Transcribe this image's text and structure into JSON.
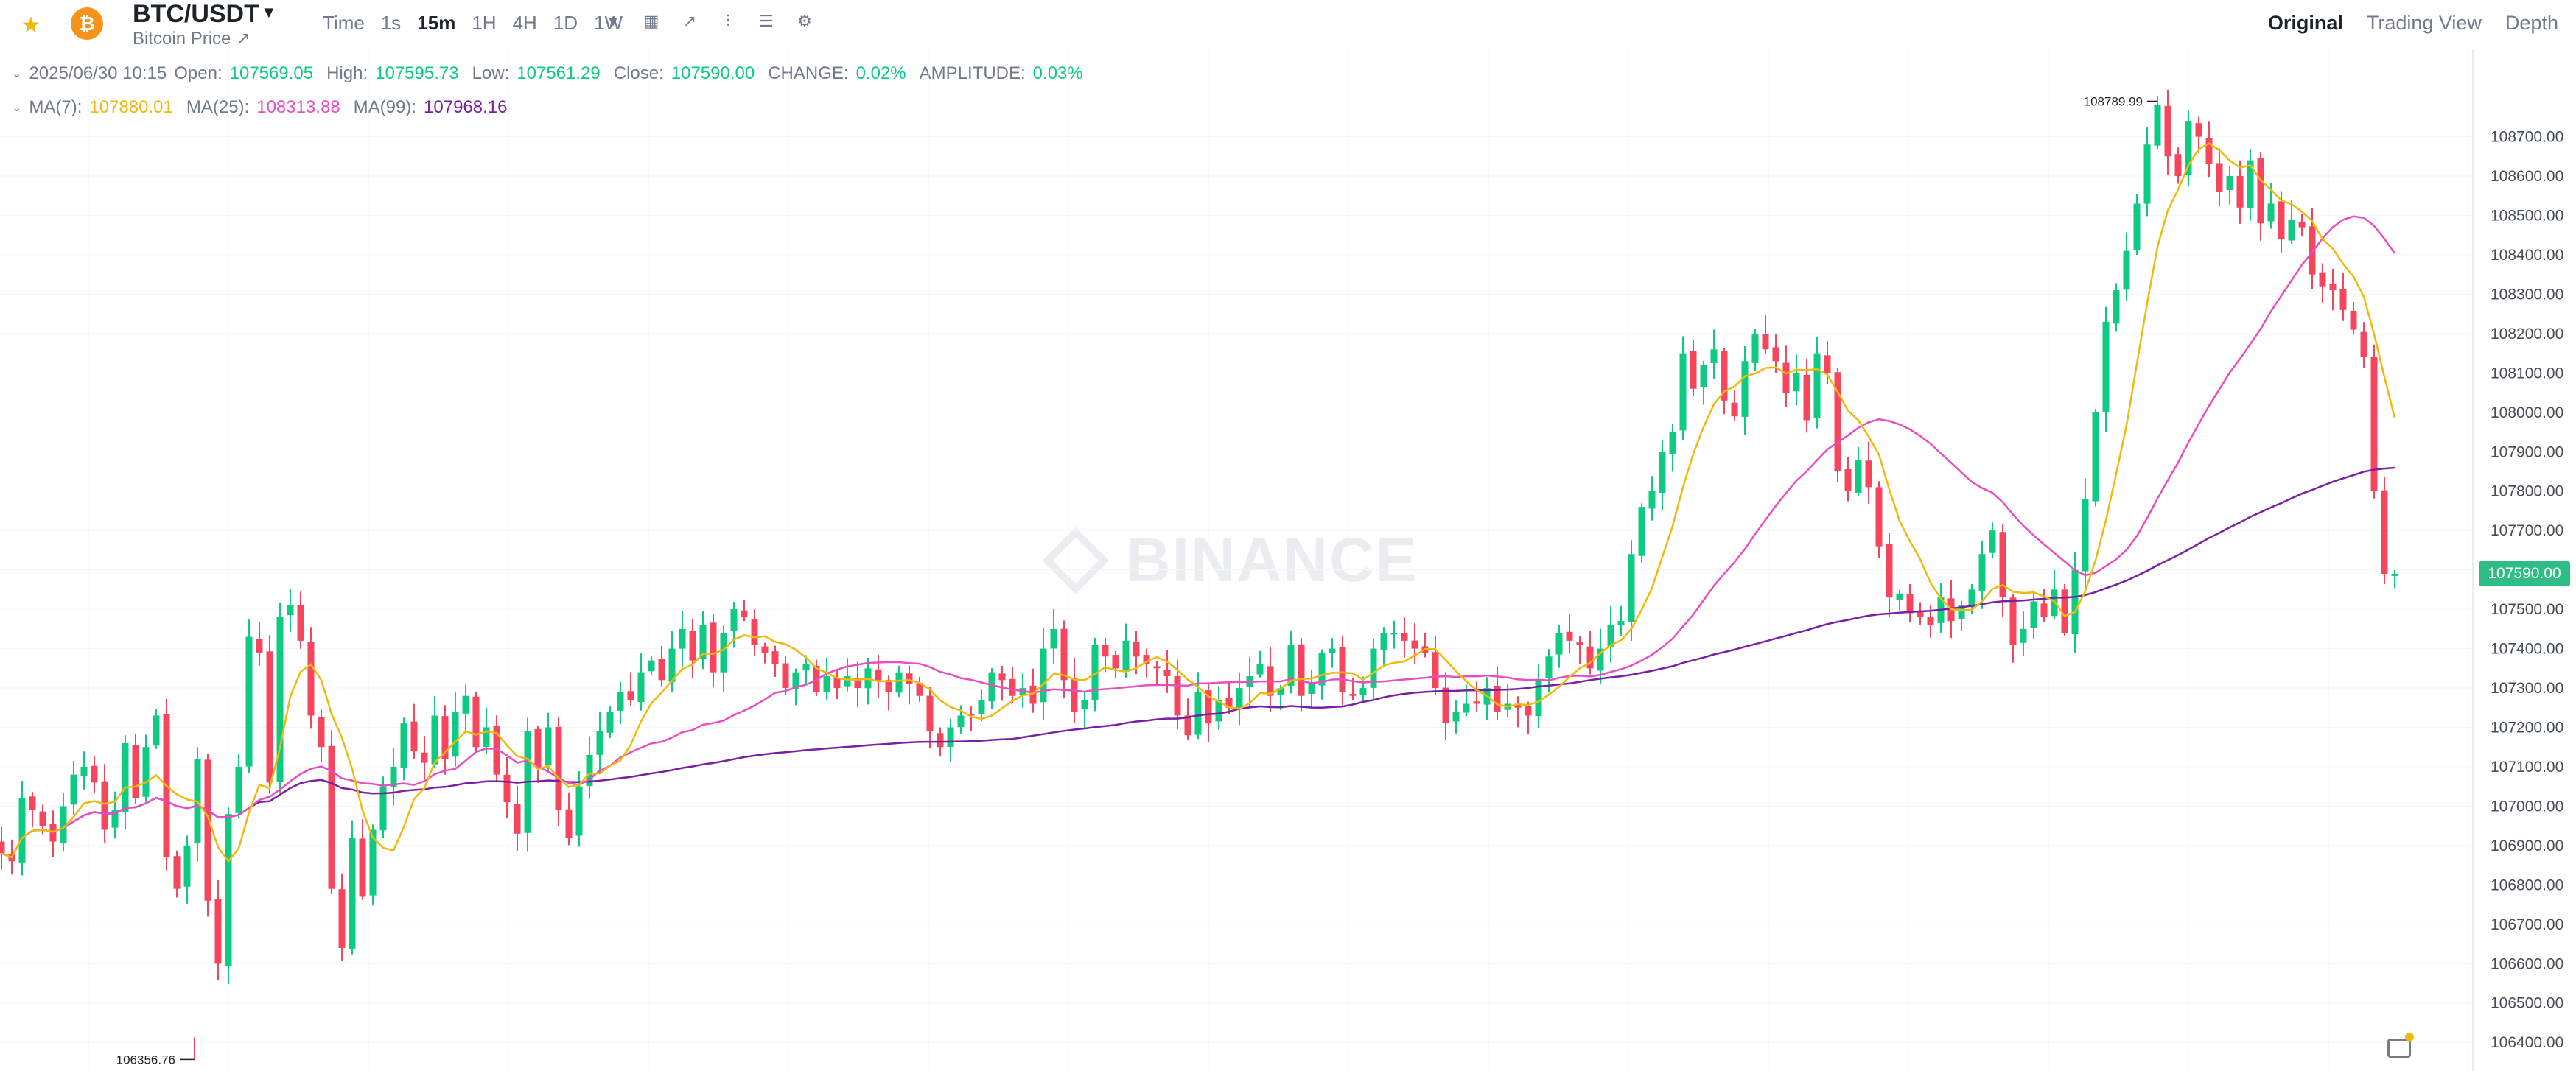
{
  "header": {
    "symbol": "BTC/USDT",
    "subtitle": "Bitcoin Price ↗",
    "coin_glyph": "₿",
    "intervals": [
      "Time",
      "1s",
      "15m",
      "1H",
      "4H",
      "1D",
      "1W"
    ],
    "active_interval": "15m",
    "views": [
      "Original",
      "Trading View",
      "Depth"
    ],
    "active_view": "Original"
  },
  "ohlc": {
    "datetime": "2025/06/30 10:15",
    "open_label": "Open:",
    "open": "107569.05",
    "high_label": "High:",
    "high": "107595.73",
    "low_label": "Low:",
    "low": "107561.29",
    "close_label": "Close:",
    "close": "107590.00",
    "change_label": "CHANGE:",
    "change": "0.02%",
    "amplitude_label": "AMPLITUDE:",
    "amplitude": "0.03%"
  },
  "ma": {
    "ma7_label": "MA(7):",
    "ma7": "107880.01",
    "ma25_label": "MA(25):",
    "ma25": "108313.88",
    "ma99_label": "MA(99):",
    "ma99": "107968.16"
  },
  "watermark": "BINANCE",
  "colors": {
    "up": "#0ecb81",
    "down": "#f6465d",
    "ma7": "#f0b90b",
    "ma25": "#e84ec2",
    "ma99": "#7b1fa2",
    "accent": "#f0b90b"
  },
  "chart_data": {
    "type": "candlestick",
    "title": "BTC/USDT",
    "interval": "15m",
    "ylim": [
      106356.76,
      108789.99
    ],
    "y_ticks": [
      108700,
      108600,
      108500,
      108400,
      108300,
      108200,
      108100,
      108000,
      107900,
      107800,
      107700,
      107600,
      107500,
      107400,
      107300,
      107200,
      107100,
      107000,
      106900,
      106800,
      106700,
      106600,
      106500,
      106400
    ],
    "y_tick_labels": [
      "108700.00",
      "108600.00",
      "108500.00",
      "108400.00",
      "108300.00",
      "108200.00",
      "108100.00",
      "108000.00",
      "107900.00",
      "107800.00",
      "107700.00",
      "107600.00",
      "107500.00",
      "107400.00",
      "107300.00",
      "107200.00",
      "107100.00",
      "107000.00",
      "106900.00",
      "106800.00",
      "106700.00",
      "106600.00",
      "106500.00",
      "106400.00"
    ],
    "current_price": 107590.0,
    "current_price_label": "107590.00",
    "high_marker": 108789.99,
    "high_marker_label": "108789.99",
    "low_marker": 106356.76,
    "low_marker_label": "106356.76",
    "series_close": [
      106880,
      106860,
      107020,
      106990,
      106950,
      106910,
      107000,
      107080,
      107100,
      107060,
      106940,
      106990,
      107160,
      107020,
      107150,
      107230,
      106870,
      106790,
      106900,
      107120,
      106760,
      106600,
      106980,
      107100,
      107430,
      107390,
      107060,
      107480,
      107510,
      107420,
      107230,
      107150,
      106790,
      106640,
      106920,
      106770,
      106940,
      107050,
      107100,
      107210,
      107140,
      107110,
      107230,
      107120,
      107240,
      107280,
      107150,
      107200,
      107080,
      107010,
      106930,
      107190,
      107100,
      107200,
      106990,
      106920,
      107050,
      107130,
      107190,
      107240,
      107290,
      107270,
      107340,
      107370,
      107320,
      107400,
      107450,
      107370,
      107460,
      107340,
      107440,
      107500,
      107480,
      107410,
      107390,
      107360,
      107300,
      107340,
      107360,
      107290,
      107330,
      107300,
      107330,
      107300,
      107350,
      107320,
      107290,
      107340,
      107310,
      107280,
      107190,
      107150,
      107200,
      107230,
      107230,
      107270,
      107340,
      107320,
      107280,
      107300,
      107260,
      107400,
      107450,
      107320,
      107240,
      107270,
      107410,
      107380,
      107350,
      107420,
      107380,
      107360,
      107350,
      107330,
      107230,
      107180,
      107290,
      107210,
      107270,
      107250,
      107300,
      107330,
      107360,
      107280,
      107300,
      107410,
      107280,
      107310,
      107390,
      107400,
      107290,
      107280,
      107300,
      107400,
      107440,
      107440,
      107420,
      107400,
      107390,
      107300,
      107210,
      107240,
      107260,
      107260,
      107300,
      107240,
      107260,
      107250,
      107230,
      107320,
      107380,
      107440,
      107420,
      107410,
      107350,
      107400,
      107460,
      107470,
      107640,
      107760,
      107800,
      107900,
      107950,
      108150,
      108060,
      108120,
      108160,
      108030,
      107990,
      108130,
      108200,
      108160,
      108130,
      108050,
      108100,
      107980,
      108150,
      108100,
      107850,
      107800,
      107880,
      107810,
      107660,
      107530,
      107540,
      107490,
      107480,
      107460,
      107530,
      107470,
      107510,
      107550,
      107640,
      107700,
      107530,
      107410,
      107450,
      107520,
      107480,
      107550,
      107440,
      107600,
      107780,
      108000,
      108230,
      108310,
      108410,
      108530,
      108680,
      108780,
      108650,
      108600,
      108740,
      108700,
      108630,
      108560,
      108600,
      108520,
      108640,
      108480,
      108530,
      108440,
      108490,
      108470,
      108350,
      108320,
      108310,
      108260,
      108210,
      108140,
      107800,
      107590,
      107590
    ]
  }
}
